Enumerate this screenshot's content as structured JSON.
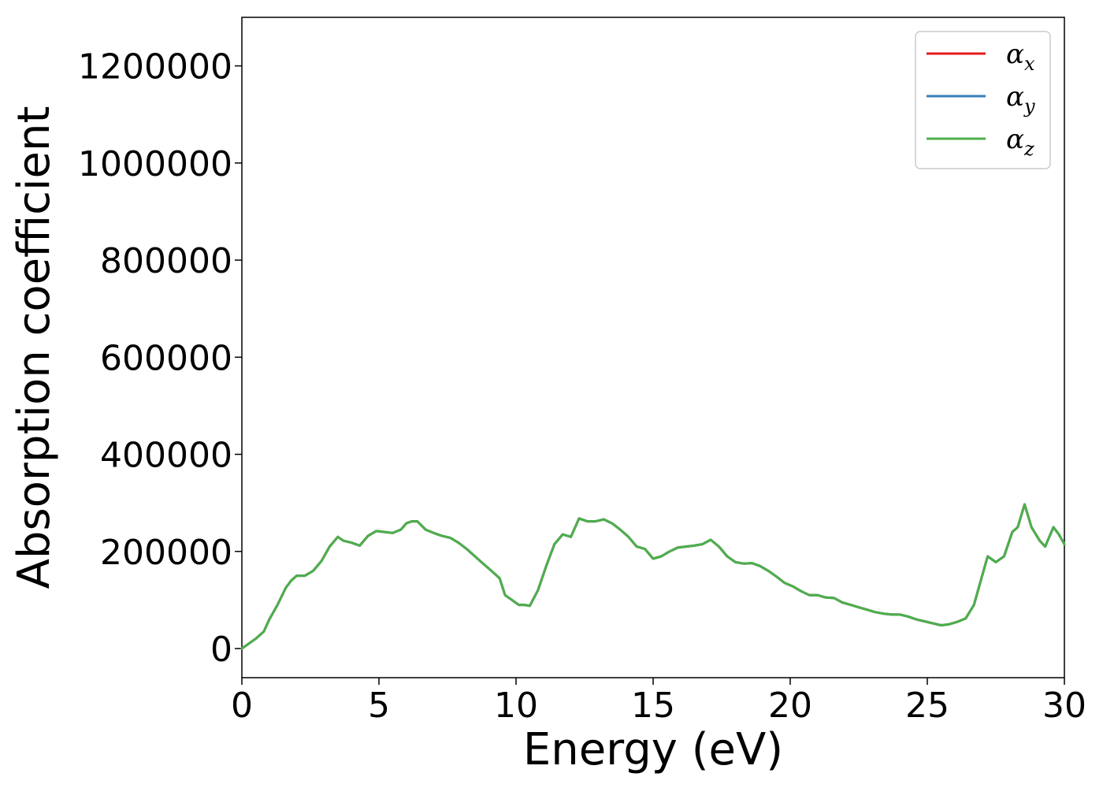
{
  "chart_data": {
    "type": "line",
    "xlabel": "Energy (eV)",
    "ylabel": "Absorption coefficient",
    "xlim": [
      0,
      30
    ],
    "ylim": [
      -60000,
      1300000
    ],
    "xticks": [
      0,
      5,
      10,
      15,
      20,
      25,
      30
    ],
    "yticks": [
      0,
      200000,
      400000,
      600000,
      800000,
      1000000,
      1200000
    ],
    "xtick_labels": [
      "0",
      "5",
      "10",
      "15",
      "20",
      "25",
      "30"
    ],
    "ytick_labels": [
      "0",
      "200000",
      "400000",
      "600000",
      "800000",
      "1000000",
      "1200000"
    ],
    "grid": false,
    "legend_position": "top-right",
    "x": [
      0,
      0.5,
      0.8,
      1.0,
      1.3,
      1.6,
      1.8,
      2.0,
      2.3,
      2.6,
      2.9,
      3.2,
      3.5,
      3.7,
      4.0,
      4.3,
      4.6,
      4.9,
      5.2,
      5.5,
      5.8,
      6.0,
      6.2,
      6.4,
      6.7,
      7.0,
      7.3,
      7.6,
      7.9,
      8.2,
      8.5,
      8.8,
      9.1,
      9.4,
      9.6,
      9.9,
      10.1,
      10.3,
      10.5,
      10.8,
      11.1,
      11.4,
      11.7,
      12.0,
      12.3,
      12.6,
      12.9,
      13.2,
      13.5,
      13.8,
      14.1,
      14.4,
      14.7,
      15.0,
      15.3,
      15.6,
      15.9,
      16.2,
      16.5,
      16.8,
      17.1,
      17.4,
      17.7,
      18.0,
      18.3,
      18.6,
      18.9,
      19.2,
      19.5,
      19.8,
      20.1,
      20.4,
      20.7,
      21.0,
      21.3,
      21.6,
      21.9,
      22.2,
      22.5,
      22.8,
      23.1,
      23.4,
      23.7,
      24.0,
      24.3,
      24.6,
      24.9,
      25.2,
      25.5,
      25.8,
      26.1,
      26.4,
      26.7,
      27.0,
      27.2,
      27.5,
      27.8,
      28.1,
      28.3,
      28.55,
      28.8,
      29.1,
      29.3,
      29.6,
      29.8,
      30.0
    ],
    "series": [
      {
        "name": "αx",
        "color": "#e41a1c",
        "values": [
          0,
          20000,
          35000,
          60000,
          90000,
          125000,
          140000,
          150000,
          150000,
          160000,
          180000,
          210000,
          230000,
          222000,
          218000,
          212000,
          232000,
          242000,
          240000,
          238000,
          245000,
          258000,
          262000,
          262000,
          245000,
          238000,
          232000,
          228000,
          218000,
          205000,
          190000,
          175000,
          160000,
          145000,
          110000,
          98000,
          90000,
          90000,
          88000,
          120000,
          170000,
          215000,
          235000,
          230000,
          268000,
          262000,
          262000,
          266000,
          258000,
          245000,
          230000,
          210000,
          205000,
          185000,
          190000,
          200000,
          208000,
          210000,
          212000,
          215000,
          224000,
          210000,
          190000,
          178000,
          175000,
          176000,
          170000,
          160000,
          148000,
          135000,
          128000,
          118000,
          110000,
          110000,
          105000,
          104000,
          95000,
          90000,
          85000,
          80000,
          75000,
          72000,
          70000,
          70000,
          66000,
          60000,
          56000,
          52000,
          48000,
          50000,
          55000,
          62000,
          90000,
          150000,
          190000,
          178000,
          190000,
          240000,
          250000,
          297000,
          250000,
          222000,
          210000,
          250000,
          235000,
          215000
        ]
      },
      {
        "name": "αy",
        "color": "#377eb8",
        "values": [
          0,
          20000,
          35000,
          60000,
          90000,
          125000,
          140000,
          150000,
          150000,
          160000,
          180000,
          210000,
          230000,
          222000,
          218000,
          212000,
          232000,
          242000,
          240000,
          238000,
          245000,
          258000,
          262000,
          262000,
          245000,
          238000,
          232000,
          228000,
          218000,
          205000,
          190000,
          175000,
          160000,
          145000,
          110000,
          98000,
          90000,
          90000,
          88000,
          120000,
          170000,
          215000,
          235000,
          230000,
          268000,
          262000,
          262000,
          266000,
          258000,
          245000,
          230000,
          210000,
          205000,
          185000,
          190000,
          200000,
          208000,
          210000,
          212000,
          215000,
          224000,
          210000,
          190000,
          178000,
          175000,
          176000,
          170000,
          160000,
          148000,
          135000,
          128000,
          118000,
          110000,
          110000,
          105000,
          104000,
          95000,
          90000,
          85000,
          80000,
          75000,
          72000,
          70000,
          70000,
          66000,
          60000,
          56000,
          52000,
          48000,
          50000,
          55000,
          62000,
          90000,
          150000,
          190000,
          178000,
          190000,
          240000,
          250000,
          297000,
          250000,
          222000,
          210000,
          250000,
          235000,
          215000
        ]
      },
      {
        "name": "αz",
        "color": "#4daf4a",
        "values": [
          0,
          20000,
          35000,
          60000,
          90000,
          125000,
          140000,
          150000,
          150000,
          160000,
          180000,
          210000,
          230000,
          222000,
          218000,
          212000,
          232000,
          242000,
          240000,
          238000,
          245000,
          258000,
          262000,
          262000,
          245000,
          238000,
          232000,
          228000,
          218000,
          205000,
          190000,
          175000,
          160000,
          145000,
          110000,
          98000,
          90000,
          90000,
          88000,
          120000,
          170000,
          215000,
          235000,
          230000,
          268000,
          262000,
          262000,
          266000,
          258000,
          245000,
          230000,
          210000,
          205000,
          185000,
          190000,
          200000,
          208000,
          210000,
          212000,
          215000,
          224000,
          210000,
          190000,
          178000,
          175000,
          176000,
          170000,
          160000,
          148000,
          135000,
          128000,
          118000,
          110000,
          110000,
          105000,
          104000,
          95000,
          90000,
          85000,
          80000,
          75000,
          72000,
          70000,
          70000,
          66000,
          60000,
          56000,
          52000,
          48000,
          50000,
          55000,
          62000,
          90000,
          150000,
          190000,
          178000,
          190000,
          240000,
          250000,
          297000,
          250000,
          222000,
          210000,
          250000,
          235000,
          215000
        ]
      }
    ],
    "legend": [
      {
        "symbol": "α",
        "sub": "x",
        "color": "#e41a1c"
      },
      {
        "symbol": "α",
        "sub": "y",
        "color": "#377eb8"
      },
      {
        "symbol": "α",
        "sub": "z",
        "color": "#4daf4a"
      }
    ]
  }
}
